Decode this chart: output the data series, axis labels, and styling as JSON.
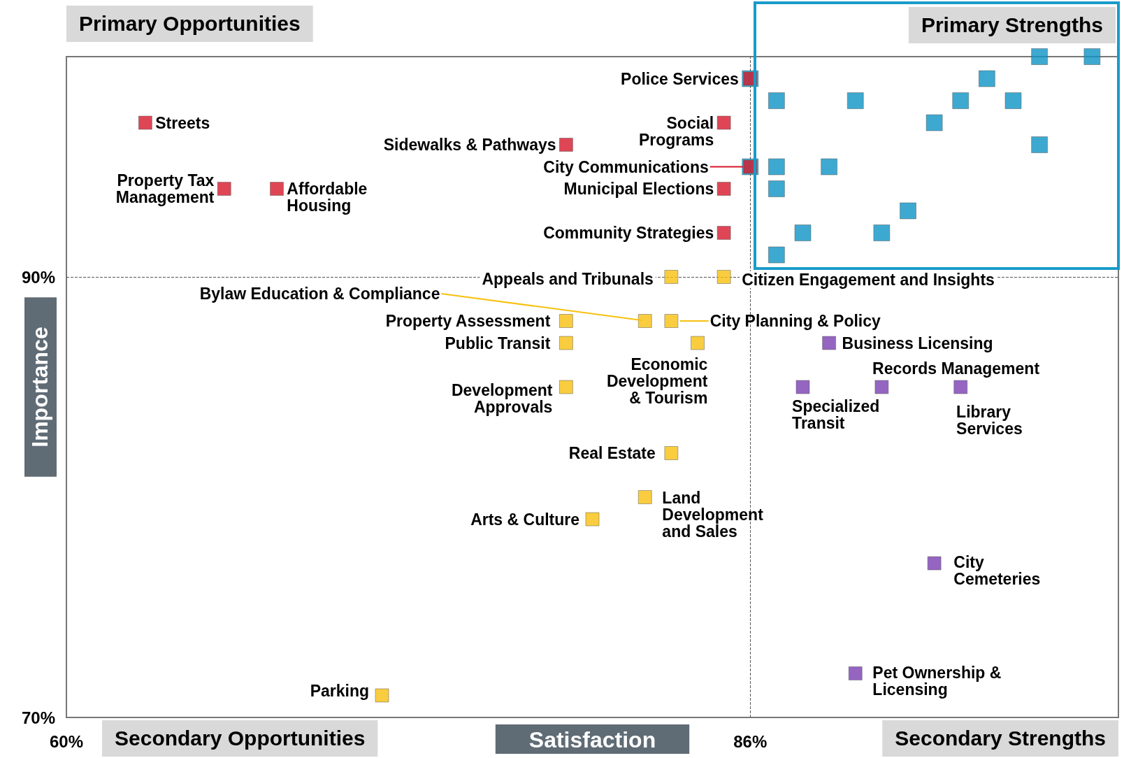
{
  "chart_data": {
    "type": "scatter",
    "xlabel": "Satisfaction",
    "ylabel": "Importance",
    "xlim": [
      60,
      100
    ],
    "ylim": [
      70,
      100
    ],
    "xticks": [
      {
        "value": 60,
        "label": "60%"
      },
      {
        "value": 86,
        "label": "86%"
      },
      {
        "value": 100,
        "label": null
      }
    ],
    "yticks": [
      {
        "value": 70,
        "label": "70%"
      },
      {
        "value": 90,
        "label": "90%"
      },
      {
        "value": 100,
        "label": null
      }
    ],
    "grid": false,
    "marker": "square",
    "ref_lines": [
      {
        "axis": "x",
        "value": 86,
        "line_style": "dashed",
        "color": "#555555"
      },
      {
        "axis": "y",
        "value": 90,
        "line_style": "dashed",
        "color": "#555555"
      }
    ],
    "series": [
      {
        "color": "#0e93c4",
        "x": [
          97,
          99,
          95,
          86,
          87,
          90,
          94,
          96,
          93,
          97,
          86,
          87,
          89,
          87,
          92,
          88,
          91,
          87
        ],
        "values": [
          100,
          100,
          99,
          99,
          98,
          98,
          98,
          98,
          97,
          96,
          95,
          95,
          95,
          94,
          93,
          92,
          92,
          91
        ]
      },
      {
        "color": "#d7182a",
        "x": [
          63,
          66,
          68,
          79,
          86,
          85,
          86,
          85,
          85
        ],
        "values": [
          97,
          94,
          94,
          96,
          99,
          97,
          95,
          94,
          92
        ]
      },
      {
        "color": "#f7c10f",
        "x": [
          83,
          85,
          82,
          83,
          79,
          79,
          84,
          79,
          83,
          82,
          80,
          72
        ],
        "values": [
          90,
          90,
          88,
          88,
          88,
          87,
          87,
          85,
          82,
          80,
          79,
          71
        ]
      },
      {
        "color": "#7b3fb3",
        "x": [
          89,
          88,
          91,
          94,
          93,
          90
        ],
        "values": [
          87,
          85,
          85,
          85,
          77,
          72
        ]
      }
    ],
    "annotations": [
      "Primary Opportunities",
      "Primary Strengths",
      "Secondary Opportunities",
      "Secondary Strengths",
      {
        "text": "Streets",
        "x": 63,
        "y": 97
      },
      {
        "text": "Property Tax\nManagement",
        "x": 66,
        "y": 94
      },
      {
        "text": "Affordable\nHousing",
        "x": 68,
        "y": 94
      },
      {
        "text": "Sidewalks & Pathways",
        "x": 79,
        "y": 96
      },
      {
        "text": "Police Services",
        "x": 86,
        "y": 99
      },
      {
        "text": "Social\nPrograms",
        "x": 85,
        "y": 97
      },
      {
        "text": "City Communications",
        "x": 86,
        "y": 95
      },
      {
        "text": "Municipal Elections",
        "x": 85,
        "y": 94
      },
      {
        "text": "Community Strategies",
        "x": 85,
        "y": 92
      },
      {
        "text": "Appeals and Tribunals",
        "x": 83,
        "y": 90
      },
      {
        "text": "Citizen Engagement and Insights",
        "x": 85,
        "y": 90
      },
      {
        "text": "Bylaw Education & Compliance",
        "x": 82,
        "y": 88
      },
      {
        "text": "City Planning & Policy",
        "x": 83,
        "y": 88
      },
      {
        "text": "Property Assessment",
        "x": 79,
        "y": 88
      },
      {
        "text": "Public Transit",
        "x": 79,
        "y": 87
      },
      {
        "text": "Economic\nDevelopment\n& Tourism",
        "x": 84,
        "y": 87
      },
      {
        "text": "Development\nApprovals",
        "x": 79,
        "y": 85
      },
      {
        "text": "Real Estate",
        "x": 83,
        "y": 82
      },
      {
        "text": "Land\nDevelopment\nand Sales",
        "x": 82,
        "y": 80
      },
      {
        "text": "Arts & Culture",
        "x": 80,
        "y": 79
      },
      {
        "text": "Parking",
        "x": 72,
        "y": 71
      },
      {
        "text": "Business Licensing",
        "x": 89,
        "y": 87
      },
      {
        "text": "Specialized\nTransit",
        "x": 88,
        "y": 85
      },
      {
        "text": "Records Management",
        "x": 91,
        "y": 85
      },
      {
        "text": "Library\nServices",
        "x": 94,
        "y": 85
      },
      {
        "text": "City\nCemeteries",
        "x": 93,
        "y": 77
      },
      {
        "text": "Pet Ownership &\nLicensing",
        "x": 90,
        "y": 72
      }
    ]
  }
}
